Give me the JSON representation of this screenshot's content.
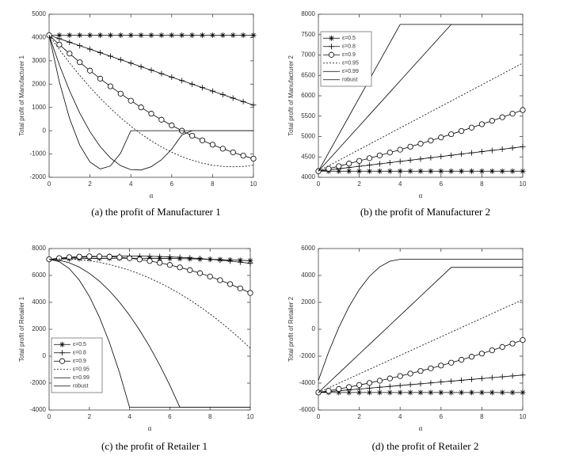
{
  "chart_data": [
    {
      "type": "line",
      "caption": "(a)  the profit of Manufacturer 1",
      "xlabel": "α",
      "ylabel": "Total profit of Manufacturer 1",
      "xlim": [
        0,
        10
      ],
      "xticks": [
        0,
        2,
        4,
        6,
        8,
        10
      ],
      "ylim": [
        -2000,
        5000
      ],
      "yticks": [
        -2000,
        -1000,
        0,
        1000,
        2000,
        3000,
        4000,
        5000
      ],
      "x": [
        0,
        0.5,
        1,
        1.5,
        2,
        2.5,
        3,
        3.5,
        4,
        4.5,
        5,
        5.5,
        6,
        6.5,
        7,
        7.5,
        8,
        8.5,
        9,
        9.5,
        10
      ],
      "series": [
        {
          "color": "#000000",
          "marker": "asterisk",
          "values": [
            4100,
            4100,
            4100,
            4100,
            4100,
            4100,
            4100,
            4100,
            4100,
            4100,
            4100,
            4100,
            4100,
            4100,
            4100,
            4100,
            4100,
            4100,
            4100,
            4100,
            4100
          ]
        },
        {
          "color": "#000000",
          "marker": "plus",
          "values": [
            4100,
            3950,
            3800,
            3650,
            3500,
            3350,
            3200,
            3050,
            2900,
            2750,
            2600,
            2450,
            2300,
            2150,
            2000,
            1850,
            1700,
            1550,
            1400,
            1250,
            1100
          ]
        },
        {
          "color": "#000000",
          "marker": "circle",
          "values": [
            4100,
            3698,
            3311,
            2938,
            2579,
            2235,
            1905,
            1590,
            1289,
            1002,
            730,
            472,
            229,
            0,
            -215,
            -415,
            -601,
            -772,
            -929,
            -1072,
            -1200
          ]
        },
        {
          "color": "#000000",
          "dashed": true,
          "values": [
            4100,
            3489,
            2914,
            2373,
            1868,
            1397,
            961,
            560,
            194,
            -138,
            -434,
            -696,
            -922,
            -1114,
            -1271,
            -1393,
            -1480,
            -1533,
            -1550,
            -1533,
            -1480
          ]
        },
        {
          "color": "#000000",
          "values": [
            4100,
            2830,
            1716,
            759,
            -41,
            -684,
            -1170,
            -1499,
            -1672,
            -1687,
            -1546,
            -1248,
            -793,
            -182,
            0,
            0,
            0,
            0,
            0,
            0,
            0
          ]
        },
        {
          "color": "#000000",
          "values": [
            4100,
            2101,
            528,
            -621,
            -1344,
            -1641,
            -1514,
            -961,
            0,
            0,
            0,
            0,
            0,
            0,
            0,
            0,
            0,
            0,
            0,
            0,
            0
          ]
        }
      ]
    },
    {
      "type": "line",
      "caption": "(b)  the profit of Manufacturer 2",
      "xlabel": "α",
      "ylabel": "Total profit of Manufacturer 2",
      "legend": "upper left",
      "xlim": [
        0,
        10
      ],
      "xticks": [
        0,
        2,
        4,
        6,
        8,
        10
      ],
      "ylim": [
        4000,
        8000
      ],
      "yticks": [
        4000,
        4500,
        5000,
        5500,
        6000,
        6500,
        7000,
        7500,
        8000
      ],
      "x": [
        0,
        0.5,
        1,
        1.5,
        2,
        2.5,
        3,
        3.5,
        4,
        4.5,
        5,
        5.5,
        6,
        6.5,
        7,
        7.5,
        8,
        8.5,
        9,
        9.5,
        10
      ],
      "series": [
        {
          "name": "ε=0.5",
          "color": "#000000",
          "marker": "asterisk",
          "values": [
            4150,
            4150,
            4150,
            4150,
            4150,
            4150,
            4150,
            4150,
            4150,
            4150,
            4150,
            4150,
            4150,
            4150,
            4150,
            4150,
            4150,
            4150,
            4150,
            4150,
            4150
          ]
        },
        {
          "name": "ε=0.8",
          "color": "#000000",
          "marker": "plus",
          "values": [
            4150,
            4180,
            4210,
            4240,
            4270,
            4300,
            4330,
            4360,
            4390,
            4420,
            4450,
            4480,
            4510,
            4540,
            4570,
            4600,
            4630,
            4660,
            4690,
            4720,
            4750
          ]
        },
        {
          "name": "ε=0.9",
          "color": "#000000",
          "marker": "circle",
          "values": [
            4150,
            4211,
            4273,
            4337,
            4402,
            4469,
            4537,
            4607,
            4678,
            4751,
            4825,
            4901,
            4978,
            5057,
            5137,
            5219,
            5302,
            5387,
            5473,
            5561,
            5650
          ]
        },
        {
          "name": "ε=0.95",
          "color": "#000000",
          "dashed": true,
          "values": [
            4150,
            4283,
            4415,
            4548,
            4680,
            4813,
            4945,
            5078,
            5210,
            5343,
            5475,
            5608,
            5740,
            5873,
            6005,
            6138,
            6270,
            6403,
            6535,
            6668,
            6800
          ]
        },
        {
          "name": "ε=0.99",
          "color": "#000000",
          "values": [
            4150,
            4427,
            4704,
            4981,
            5258,
            5535,
            5812,
            6089,
            6366,
            6643,
            6920,
            7197,
            7474,
            7750,
            7750,
            7750,
            7750,
            7750,
            7750,
            7750,
            7750
          ]
        },
        {
          "name": "robust",
          "color": "#000000",
          "values": [
            4150,
            4600,
            5050,
            5500,
            5950,
            6400,
            6850,
            7300,
            7750,
            7750,
            7750,
            7750,
            7750,
            7750,
            7750,
            7750,
            7750,
            7750,
            7750,
            7750,
            7750
          ]
        }
      ]
    },
    {
      "type": "line",
      "caption": "(c)  the profit of Retailer 1",
      "xlabel": "α",
      "ylabel": "Total profit of Retailer 1",
      "legend": "lower left",
      "xlim": [
        0,
        10
      ],
      "xticks": [
        0,
        2,
        4,
        6,
        8,
        10
      ],
      "ylim": [
        -4000,
        8000
      ],
      "yticks": [
        -4000,
        -2000,
        0,
        2000,
        4000,
        6000,
        8000
      ],
      "x": [
        0,
        0.5,
        1,
        1.5,
        2,
        2.5,
        3,
        3.5,
        4,
        4.5,
        5,
        5.5,
        6,
        6.5,
        7,
        7.5,
        8,
        8.5,
        9,
        9.5,
        10
      ],
      "series": [
        {
          "name": "ε=0.5",
          "color": "#000000",
          "marker": "asterisk",
          "values": [
            7200,
            7219,
            7235,
            7249,
            7260,
            7269,
            7275,
            7279,
            7280,
            7279,
            7275,
            7269,
            7260,
            7249,
            7235,
            7219,
            7200,
            7179,
            7155,
            7129,
            7100
          ]
        },
        {
          "name": "ε=0.8",
          "color": "#000000",
          "marker": "plus",
          "values": [
            7200,
            7256,
            7305,
            7346,
            7380,
            7406,
            7425,
            7436,
            7440,
            7436,
            7425,
            7406,
            7380,
            7346,
            7305,
            7256,
            7200,
            7136,
            7065,
            6986,
            6900
          ]
        },
        {
          "name": "ε=0.9",
          "color": "#000000",
          "marker": "circle",
          "values": [
            7200,
            7289,
            7355,
            7399,
            7420,
            7419,
            7395,
            7349,
            7280,
            7189,
            7075,
            6939,
            6780,
            6599,
            6395,
            6169,
            5920,
            5649,
            5355,
            5039,
            4700
          ]
        },
        {
          "name": "ε=0.95",
          "color": "#000000",
          "dashed": true,
          "values": [
            7200,
            7231,
            7224,
            7179,
            7096,
            6975,
            6816,
            6619,
            6384,
            6111,
            5800,
            5451,
            5064,
            4639,
            4176,
            3675,
            3136,
            2559,
            1944,
            1291,
            600
          ]
        },
        {
          "name": "ε=0.99",
          "color": "#000000",
          "values": [
            7200,
            7135,
            6940,
            6615,
            6160,
            5575,
            4860,
            4015,
            3040,
            1935,
            700,
            -665,
            -2160,
            -3800,
            -3800,
            -3800,
            -3800,
            -3800,
            -3800,
            -3800,
            -3800
          ]
        },
        {
          "name": "robust",
          "color": "#000000",
          "values": [
            7200,
            7028,
            6513,
            5653,
            4450,
            2903,
            1013,
            -1222,
            -3800,
            -3800,
            -3800,
            -3800,
            -3800,
            -3800,
            -3800,
            -3800,
            -3800,
            -3800,
            -3800,
            -3800,
            -3800
          ]
        }
      ]
    },
    {
      "type": "line",
      "caption": "(d)  the profit of Retailer 2",
      "xlabel": "α",
      "ylabel": "Total profit of Retailer 2",
      "xlim": [
        0,
        10
      ],
      "xticks": [
        0,
        2,
        4,
        6,
        8,
        10
      ],
      "ylim": [
        -6000,
        6000
      ],
      "yticks": [
        -6000,
        -4000,
        -2000,
        0,
        2000,
        4000,
        6000
      ],
      "x": [
        0,
        0.5,
        1,
        1.5,
        2,
        2.5,
        3,
        3.5,
        4,
        4.5,
        5,
        5.5,
        6,
        6.5,
        7,
        7.5,
        8,
        8.5,
        9,
        9.5,
        10
      ],
      "series": [
        {
          "color": "#000000",
          "marker": "asterisk",
          "values": [
            -4700,
            -4700,
            -4700,
            -4700,
            -4700,
            -4700,
            -4700,
            -4700,
            -4700,
            -4700,
            -4700,
            -4700,
            -4700,
            -4700,
            -4700,
            -4700,
            -4700,
            -4700,
            -4700,
            -4700,
            -4700
          ]
        },
        {
          "color": "#000000",
          "marker": "plus",
          "values": [
            -4700,
            -4635,
            -4570,
            -4505,
            -4440,
            -4375,
            -4310,
            -4245,
            -4180,
            -4115,
            -4050,
            -3985,
            -3920,
            -3855,
            -3790,
            -3725,
            -3660,
            -3595,
            -3530,
            -3465,
            -3400
          ]
        },
        {
          "color": "#000000",
          "marker": "circle",
          "values": [
            -4700,
            -4572,
            -4436,
            -4294,
            -4144,
            -3988,
            -3824,
            -3654,
            -3476,
            -3292,
            -3100,
            -2902,
            -2696,
            -2484,
            -2264,
            -2038,
            -1804,
            -1564,
            -1316,
            -1062,
            -800
          ]
        },
        {
          "color": "#000000",
          "dashed": true,
          "values": [
            -4700,
            -4355,
            -4010,
            -3665,
            -3320,
            -2975,
            -2630,
            -2285,
            -1940,
            -1595,
            -1250,
            -905,
            -560,
            -215,
            130,
            475,
            820,
            1165,
            1510,
            1855,
            2200
          ]
        },
        {
          "color": "#000000",
          "values": [
            -4700,
            -3985,
            -3269,
            -2554,
            -1838,
            -1123,
            -407,
            309,
            1024,
            1740,
            2455,
            3171,
            3886,
            4600,
            4600,
            4600,
            4600,
            4600,
            4600,
            4600,
            4600
          ]
        },
        {
          "color": "#000000",
          "values": [
            -3800,
            -1691,
            137,
            1684,
            2950,
            3934,
            4637,
            5059,
            5200,
            5200,
            5200,
            5200,
            5200,
            5200,
            5200,
            5200,
            5200,
            5200,
            5200,
            5200,
            5200
          ]
        }
      ]
    }
  ]
}
